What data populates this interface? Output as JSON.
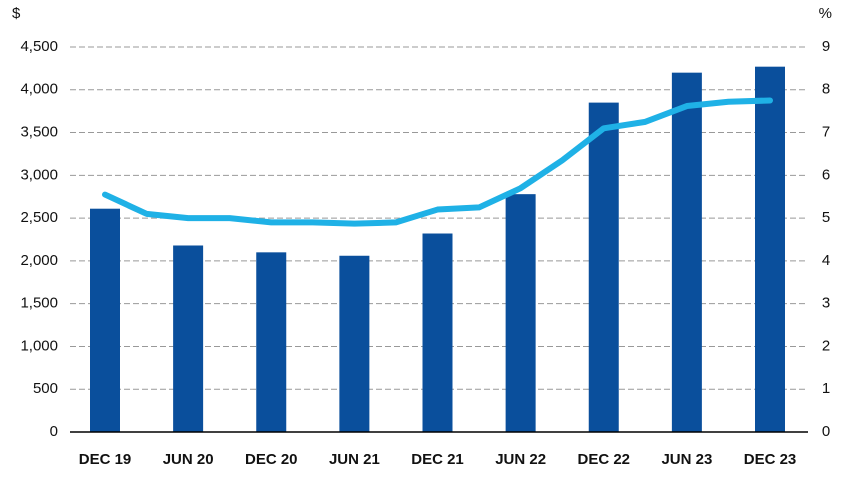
{
  "chart_data": {
    "type": "bar-line",
    "y_label": "$",
    "y2_label": "%",
    "categories": [
      "DEC 19",
      null,
      "JUN 20",
      null,
      "DEC 20",
      null,
      "JUN 21",
      null,
      "DEC 21",
      null,
      "JUN 22",
      null,
      "DEC 22",
      null,
      "JUN 23",
      null,
      "DEC 23"
    ],
    "series": [
      {
        "type": "bar",
        "color": "#0a4f9c",
        "values": [
          2610,
          null,
          2180,
          null,
          2100,
          null,
          2060,
          null,
          2320,
          null,
          2780,
          null,
          3850,
          null,
          4200,
          null,
          4270
        ]
      },
      {
        "type": "line",
        "axis": "y2",
        "color": "#1fb1e6",
        "values": [
          5.55,
          5.1,
          5.0,
          5.0,
          4.9,
          4.9,
          4.87,
          4.9,
          5.2,
          5.25,
          5.7,
          6.35,
          7.1,
          7.25,
          7.62,
          7.72,
          7.75
        ]
      }
    ],
    "ylim": [
      0,
      4500
    ],
    "yticks": [
      0,
      500,
      {
        "value": 1000,
        "label": "1,000"
      },
      {
        "value": 1500,
        "label": "1,500"
      },
      {
        "value": 2000,
        "label": "2,000"
      },
      {
        "value": 2500,
        "label": "2,500"
      },
      {
        "value": 3000,
        "label": "3,000"
      },
      {
        "value": 3500,
        "label": "3,500"
      },
      {
        "value": 4000,
        "label": "4,000"
      },
      {
        "value": 4500,
        "label": "4,500"
      }
    ],
    "y2lim": [
      0,
      9
    ],
    "y2ticks": [
      0,
      1,
      2,
      3,
      4,
      5,
      6,
      7,
      8,
      9
    ],
    "grid": true
  }
}
